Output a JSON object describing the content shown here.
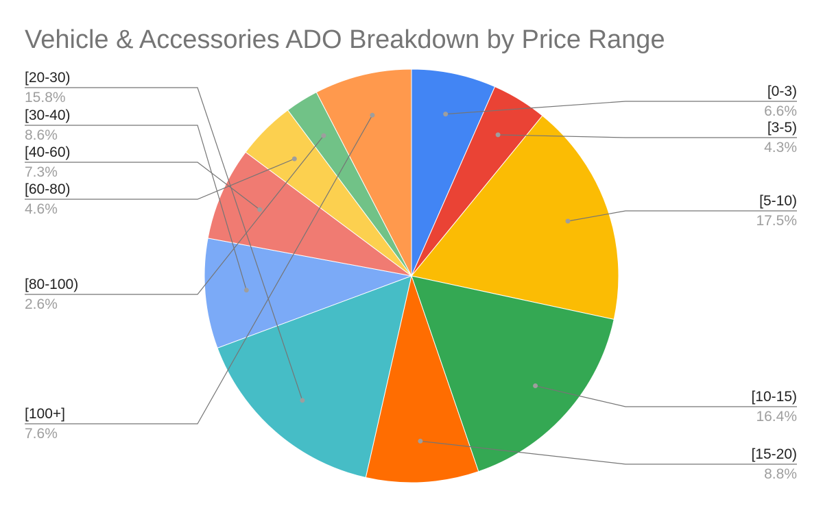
{
  "chart_data": {
    "type": "pie",
    "title": "Vehicle & Accessories ADO Breakdown by Price Range",
    "legend": "none (slice labels with leader lines)",
    "start_angle_deg": 0,
    "direction": "clockwise",
    "slices": [
      {
        "name": "[0-3)",
        "value": 6.6,
        "label": "6.6%",
        "color": "#4285F4",
        "side": "right"
      },
      {
        "name": "[3-5)",
        "value": 4.3,
        "label": "4.3%",
        "color": "#EA4335",
        "side": "right"
      },
      {
        "name": "[5-10)",
        "value": 17.5,
        "label": "17.5%",
        "color": "#FBBC04",
        "side": "right"
      },
      {
        "name": "[10-15)",
        "value": 16.4,
        "label": "16.4%",
        "color": "#34A853",
        "side": "right"
      },
      {
        "name": "[15-20)",
        "value": 8.8,
        "label": "8.8%",
        "color": "#FF6D01",
        "side": "right"
      },
      {
        "name": "[20-30)",
        "value": 15.8,
        "label": "15.8%",
        "color": "#46BDC6",
        "side": "left"
      },
      {
        "name": "[30-40)",
        "value": 8.6,
        "label": "8.6%",
        "color": "#7BAAF7",
        "side": "left"
      },
      {
        "name": "[40-60)",
        "value": 7.3,
        "label": "7.3%",
        "color": "#F07B72",
        "side": "left"
      },
      {
        "name": "[60-80)",
        "value": 4.6,
        "label": "4.6%",
        "color": "#FCD04F",
        "side": "left"
      },
      {
        "name": "[80-100)",
        "value": 2.6,
        "label": "2.6%",
        "color": "#71C287",
        "side": "left"
      },
      {
        "name": "[100+]",
        "value": 7.6,
        "label": "7.6%",
        "color": "#FF994D",
        "side": "left"
      }
    ]
  }
}
